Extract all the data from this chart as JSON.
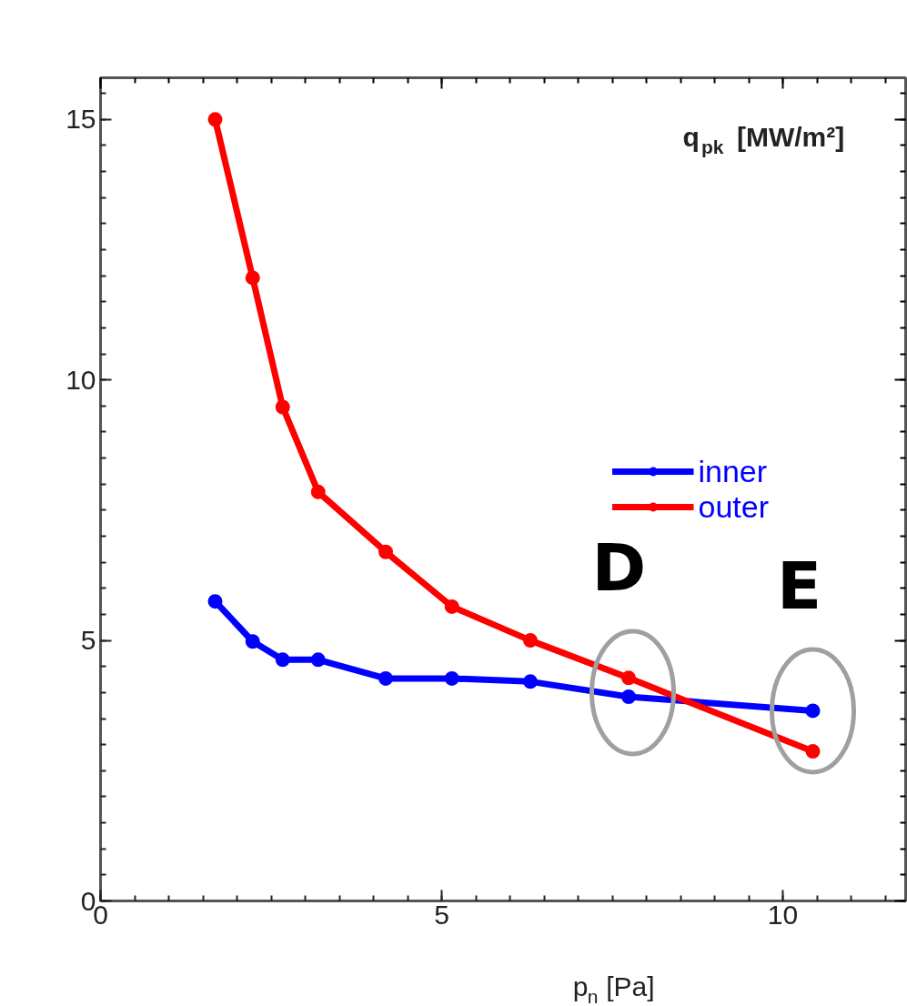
{
  "chart_data": {
    "type": "line",
    "ylabel": "q$_{pk}$ [MW/m²]",
    "xlabel": "p$_{n}$ [Pa]",
    "x": [
      1.68,
      2.23,
      2.67,
      3.19,
      4.18,
      5.15,
      6.3,
      7.74,
      10.44
    ],
    "series": [
      {
        "name": "inner",
        "color": "#0000ff",
        "values": [
          5.75,
          4.98,
          4.63,
          4.63,
          4.27,
          4.27,
          4.21,
          3.92,
          3.65
        ]
      },
      {
        "name": "outer",
        "color": "#ff0000",
        "values": [
          15.0,
          11.96,
          9.48,
          7.85,
          6.7,
          5.65,
          5.0,
          4.28,
          2.87
        ]
      }
    ],
    "xlim": [
      0,
      11.8
    ],
    "ylim": [
      0,
      15.8
    ],
    "xticks": [
      0,
      5,
      10
    ],
    "yticks": [
      0,
      5,
      10,
      15
    ],
    "grid": false,
    "legend": "right",
    "marker": "circle",
    "line_style": "solid",
    "annotations": [
      {
        "text": "D",
        "x": 7.8,
        "y": 4.0
      },
      {
        "text": "E",
        "x": 10.44,
        "y": 3.65
      }
    ]
  }
}
